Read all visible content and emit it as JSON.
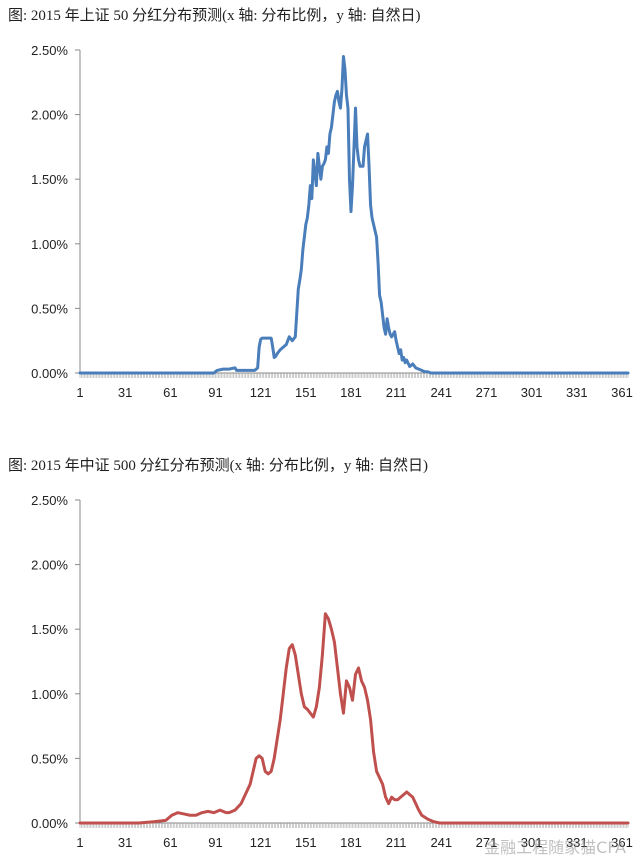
{
  "chart_data": [
    {
      "type": "line",
      "title": "图: 2015 年上证 50 分红分布预测(x 轴: 分布比例，y 轴: 自然日)",
      "xlabel": "",
      "ylabel": "",
      "x_ticks": [
        1,
        31,
        61,
        91,
        121,
        151,
        181,
        211,
        241,
        271,
        301,
        331,
        361
      ],
      "y_ticks": [
        "0.00%",
        "0.50%",
        "1.00%",
        "1.50%",
        "2.00%",
        "2.50%"
      ],
      "xlim": [
        1,
        365
      ],
      "ylim": [
        0,
        2.5
      ],
      "unit": "%",
      "color": "#4a7ebb",
      "series": [
        {
          "x": [
            1,
            90,
            92,
            96,
            100,
            104,
            105,
            108,
            110,
            114,
            117,
            119,
            120,
            121,
            122,
            124,
            126,
            128,
            129,
            130,
            131,
            132,
            134,
            136,
            138,
            140,
            142,
            144,
            146,
            147,
            148,
            149,
            150,
            151,
            152,
            153,
            154,
            155,
            156,
            157,
            158,
            159,
            160,
            161,
            162,
            163,
            164,
            165,
            166,
            167,
            168,
            169,
            170,
            171,
            172,
            173,
            174,
            175,
            176,
            177,
            178,
            179,
            180,
            181,
            182,
            183,
            184,
            185,
            186,
            187,
            188,
            189,
            190,
            191,
            192,
            193,
            194,
            195,
            196,
            197,
            198,
            199,
            200,
            201,
            202,
            203,
            204,
            205,
            206,
            207,
            208,
            209,
            210,
            211,
            212,
            213,
            214,
            215,
            216,
            217,
            218,
            220,
            222,
            224,
            226,
            228,
            230,
            232,
            234,
            236,
            238,
            240,
            365
          ],
          "values": [
            0,
            0,
            0.02,
            0.03,
            0.03,
            0.04,
            0.02,
            0.02,
            0.02,
            0.02,
            0.02,
            0.04,
            0.2,
            0.26,
            0.27,
            0.27,
            0.27,
            0.27,
            0.2,
            0.12,
            0.13,
            0.15,
            0.18,
            0.2,
            0.22,
            0.28,
            0.25,
            0.28,
            0.65,
            0.72,
            0.8,
            0.95,
            1.05,
            1.15,
            1.2,
            1.3,
            1.45,
            1.35,
            1.65,
            1.55,
            1.45,
            1.7,
            1.6,
            1.5,
            1.6,
            1.62,
            1.65,
            1.75,
            1.7,
            1.85,
            1.9,
            2.0,
            2.1,
            2.15,
            2.18,
            2.1,
            2.05,
            2.2,
            2.45,
            2.35,
            2.15,
            2.05,
            1.5,
            1.25,
            1.45,
            1.75,
            2.05,
            1.75,
            1.65,
            1.6,
            1.6,
            1.6,
            1.75,
            1.8,
            1.85,
            1.6,
            1.3,
            1.2,
            1.15,
            1.1,
            1.05,
            0.85,
            0.6,
            0.55,
            0.45,
            0.35,
            0.3,
            0.42,
            0.35,
            0.3,
            0.28,
            0.3,
            0.32,
            0.25,
            0.2,
            0.15,
            0.18,
            0.1,
            0.12,
            0.08,
            0.1,
            0.05,
            0.07,
            0.04,
            0.03,
            0.02,
            0.01,
            0.01,
            0,
            0,
            0,
            0,
            0
          ]
        }
      ]
    },
    {
      "type": "line",
      "title": "图: 2015 年中证 500 分红分布预测(x 轴: 分布比例，y 轴: 自然日)",
      "xlabel": "",
      "ylabel": "",
      "x_ticks": [
        1,
        31,
        61,
        91,
        121,
        151,
        181,
        211,
        241,
        271,
        301,
        331,
        361
      ],
      "y_ticks": [
        "0.00%",
        "0.50%",
        "1.00%",
        "1.50%",
        "2.00%",
        "2.50%"
      ],
      "xlim": [
        1,
        365
      ],
      "ylim": [
        0,
        2.5
      ],
      "unit": "%",
      "color": "#c0504d",
      "series": [
        {
          "x": [
            1,
            40,
            50,
            58,
            62,
            66,
            70,
            74,
            78,
            82,
            86,
            90,
            94,
            98,
            100,
            104,
            108,
            110,
            112,
            114,
            116,
            118,
            120,
            122,
            124,
            126,
            128,
            130,
            132,
            134,
            136,
            138,
            140,
            142,
            144,
            146,
            148,
            150,
            152,
            154,
            156,
            158,
            160,
            162,
            164,
            166,
            168,
            170,
            172,
            174,
            176,
            178,
            180,
            182,
            184,
            186,
            188,
            190,
            192,
            194,
            196,
            198,
            200,
            202,
            204,
            206,
            208,
            210,
            212,
            214,
            216,
            218,
            220,
            222,
            224,
            226,
            228,
            232,
            236,
            240,
            365
          ],
          "values": [
            0,
            0,
            0.01,
            0.02,
            0.06,
            0.08,
            0.07,
            0.06,
            0.06,
            0.08,
            0.09,
            0.08,
            0.1,
            0.08,
            0.08,
            0.1,
            0.15,
            0.2,
            0.25,
            0.3,
            0.4,
            0.5,
            0.52,
            0.5,
            0.4,
            0.38,
            0.4,
            0.5,
            0.65,
            0.8,
            1.0,
            1.2,
            1.35,
            1.38,
            1.3,
            1.15,
            1.0,
            0.9,
            0.88,
            0.85,
            0.82,
            0.9,
            1.05,
            1.3,
            1.62,
            1.58,
            1.5,
            1.4,
            1.2,
            1.0,
            0.85,
            1.1,
            1.05,
            0.95,
            1.15,
            1.2,
            1.1,
            1.05,
            0.95,
            0.8,
            0.55,
            0.4,
            0.35,
            0.3,
            0.2,
            0.15,
            0.2,
            0.18,
            0.18,
            0.2,
            0.22,
            0.24,
            0.22,
            0.2,
            0.15,
            0.1,
            0.06,
            0.03,
            0.01,
            0,
            0
          ]
        }
      ]
    }
  ],
  "watermark": "金融工程随家猫CFA"
}
